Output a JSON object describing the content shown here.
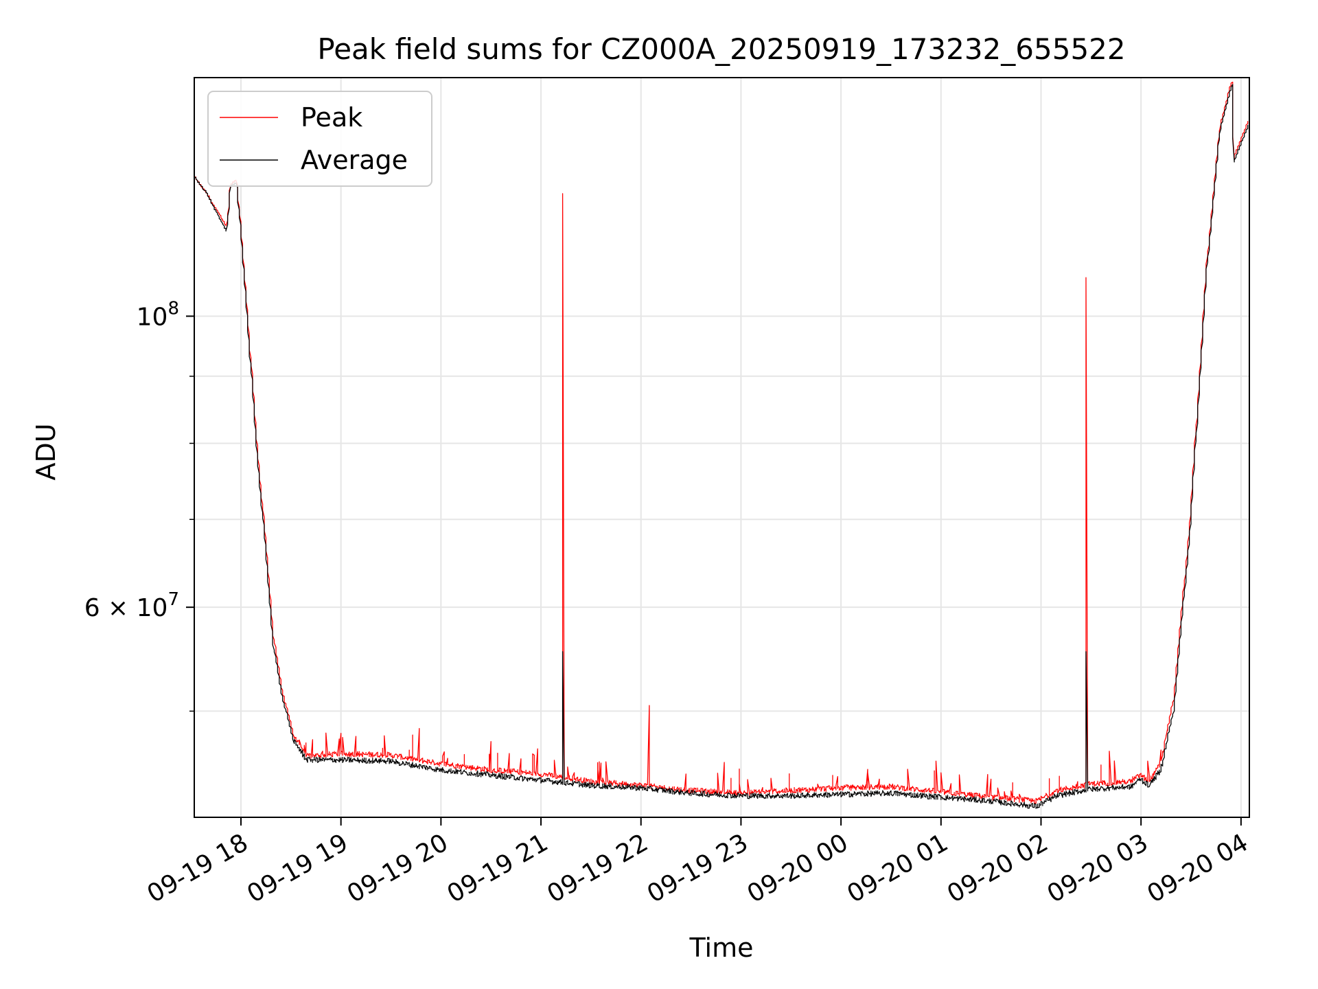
{
  "chart_data": {
    "type": "line",
    "title": "Peak field sums for CZ000A_20250919_173232_655522",
    "xlabel": "Time",
    "ylabel": "ADU",
    "yscale": "log",
    "ylim": [
      41500000,
      152000000
    ],
    "xlim": [
      "2025-09-19 17:32",
      "2025-09-20 04:05"
    ],
    "grid": true,
    "legend_position": "top-left",
    "x_ticks": [
      {
        "label": "09-19 18",
        "time": "2025-09-19 18:00"
      },
      {
        "label": "09-19 19",
        "time": "2025-09-19 19:00"
      },
      {
        "label": "09-19 20",
        "time": "2025-09-19 20:00"
      },
      {
        "label": "09-19 21",
        "time": "2025-09-19 21:00"
      },
      {
        "label": "09-19 22",
        "time": "2025-09-19 22:00"
      },
      {
        "label": "09-19 23",
        "time": "2025-09-19 23:00"
      },
      {
        "label": "09-20 00",
        "time": "2025-09-20 00:00"
      },
      {
        "label": "09-20 01",
        "time": "2025-09-20 01:00"
      },
      {
        "label": "09-20 02",
        "time": "2025-09-20 02:00"
      },
      {
        "label": "09-20 03",
        "time": "2025-09-20 03:00"
      },
      {
        "label": "09-20 04",
        "time": "2025-09-20 04:00"
      }
    ],
    "y_ticks": [
      {
        "label_base": "10",
        "label_exp": "8",
        "value": 100000000
      },
      {
        "label_base": "6 × 10",
        "label_exp": "7",
        "value": 60000000
      }
    ],
    "y_minor_ticks": [
      50000000,
      70000000,
      80000000,
      90000000
    ],
    "series": [
      {
        "name": "Peak",
        "color": "#ff0000",
        "points": [
          [
            "2025-09-19 17:32",
            128000000
          ],
          [
            "2025-09-19 17:40",
            124000000
          ],
          [
            "2025-09-19 17:52",
            117000000
          ],
          [
            "2025-09-19 17:54",
            126000000
          ],
          [
            "2025-09-19 17:58",
            127000000
          ],
          [
            "2025-09-19 18:04",
            102000000
          ],
          [
            "2025-09-19 18:10",
            80000000
          ],
          [
            "2025-09-19 18:15",
            68000000
          ],
          [
            "2025-09-19 18:20",
            57000000
          ],
          [
            "2025-09-19 18:25",
            52000000
          ],
          [
            "2025-09-19 18:32",
            48000000
          ],
          [
            "2025-09-19 18:40",
            46200000
          ],
          [
            "2025-09-19 19:00",
            46400000
          ],
          [
            "2025-09-19 19:30",
            46300000
          ],
          [
            "2025-09-19 20:00",
            45600000
          ],
          [
            "2025-09-19 20:30",
            45100000
          ],
          [
            "2025-09-19 21:00",
            44800000
          ],
          [
            "2025-09-19 21:30",
            44200000
          ],
          [
            "2025-09-19 22:00",
            43900000
          ],
          [
            "2025-09-19 22:30",
            43500000
          ],
          [
            "2025-09-19 23:00",
            43300000
          ],
          [
            "2025-09-19 23:30",
            43500000
          ],
          [
            "2025-09-20 00:00",
            43700000
          ],
          [
            "2025-09-20 00:30",
            43800000
          ],
          [
            "2025-09-20 01:00",
            43400000
          ],
          [
            "2025-09-20 01:30",
            43000000
          ],
          [
            "2025-09-20 01:58",
            42700000
          ],
          [
            "2025-09-20 02:10",
            43500000
          ],
          [
            "2025-09-20 02:30",
            44000000
          ],
          [
            "2025-09-20 02:55",
            44200000
          ],
          [
            "2025-09-20 03:00",
            44700000
          ],
          [
            "2025-09-20 03:05",
            44200000
          ],
          [
            "2025-09-20 03:12",
            45500000
          ],
          [
            "2025-09-20 03:20",
            51000000
          ],
          [
            "2025-09-20 03:30",
            70000000
          ],
          [
            "2025-09-20 03:40",
            110000000
          ],
          [
            "2025-09-20 03:48",
            140000000
          ],
          [
            "2025-09-20 03:55",
            151000000
          ],
          [
            "2025-09-20 03:56",
            132000000
          ],
          [
            "2025-09-20 04:05",
            141000000
          ]
        ],
        "spikes": [
          [
            "2025-09-19 21:14",
            124000000
          ],
          [
            "2025-09-20 02:28",
            107000000
          ],
          [
            "2025-09-19 22:05",
            50500000
          ],
          [
            "2025-09-19 19:47",
            48500000
          ],
          [
            "2025-09-19 20:30",
            47400000
          ],
          [
            "2025-09-19 20:58",
            46800000
          ],
          [
            "2025-09-19 22:50",
            45700000
          ],
          [
            "2025-09-20 00:58",
            45800000
          ],
          [
            "2025-09-20 02:42",
            46600000
          ]
        ]
      },
      {
        "name": "Average",
        "color": "#000000",
        "points": [
          [
            "2025-09-19 17:32",
            128000000
          ],
          [
            "2025-09-19 17:40",
            124000000
          ],
          [
            "2025-09-19 17:52",
            116000000
          ],
          [
            "2025-09-19 17:54",
            125500000
          ],
          [
            "2025-09-19 17:58",
            126500000
          ],
          [
            "2025-09-19 18:04",
            101000000
          ],
          [
            "2025-09-19 18:10",
            79000000
          ],
          [
            "2025-09-19 18:15",
            67000000
          ],
          [
            "2025-09-19 18:20",
            56000000
          ],
          [
            "2025-09-19 18:25",
            51500000
          ],
          [
            "2025-09-19 18:32",
            47500000
          ],
          [
            "2025-09-19 18:40",
            45900000
          ],
          [
            "2025-09-19 19:00",
            45900000
          ],
          [
            "2025-09-19 19:30",
            45800000
          ],
          [
            "2025-09-19 20:00",
            45100000
          ],
          [
            "2025-09-19 20:30",
            44700000
          ],
          [
            "2025-09-19 21:00",
            44300000
          ],
          [
            "2025-09-19 21:30",
            43900000
          ],
          [
            "2025-09-19 22:00",
            43700000
          ],
          [
            "2025-09-19 22:30",
            43300000
          ],
          [
            "2025-09-19 23:00",
            43100000
          ],
          [
            "2025-09-19 23:30",
            43100000
          ],
          [
            "2025-09-20 00:00",
            43200000
          ],
          [
            "2025-09-20 00:30",
            43300000
          ],
          [
            "2025-09-20 01:00",
            43000000
          ],
          [
            "2025-09-20 01:30",
            42700000
          ],
          [
            "2025-09-20 01:58",
            42300000
          ],
          [
            "2025-09-20 02:10",
            43100000
          ],
          [
            "2025-09-20 02:30",
            43600000
          ],
          [
            "2025-09-20 02:55",
            43800000
          ],
          [
            "2025-09-20 03:00",
            44400000
          ],
          [
            "2025-09-20 03:05",
            43900000
          ],
          [
            "2025-09-20 03:12",
            45000000
          ],
          [
            "2025-09-20 03:20",
            50000000
          ],
          [
            "2025-09-20 03:30",
            69000000
          ],
          [
            "2025-09-20 03:40",
            109000000
          ],
          [
            "2025-09-20 03:48",
            139000000
          ],
          [
            "2025-09-20 03:55",
            150000000
          ],
          [
            "2025-09-20 03:56",
            131000000
          ],
          [
            "2025-09-20 04:05",
            140000000
          ]
        ],
        "spikes": [
          [
            "2025-09-19 21:14",
            55500000
          ],
          [
            "2025-09-20 02:28",
            55500000
          ]
        ]
      }
    ]
  }
}
